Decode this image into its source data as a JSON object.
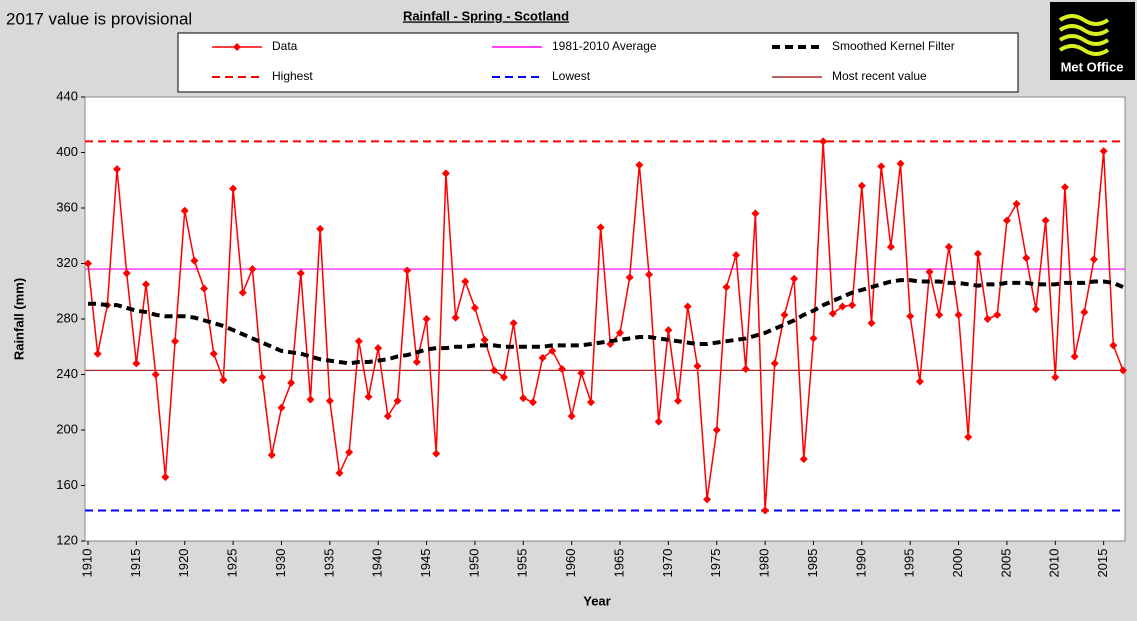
{
  "chart_data": {
    "type": "line",
    "title": "Rainfall - Spring - Scotland",
    "note": "2017 value is provisional",
    "logo": "Met Office",
    "xlabel": "Year",
    "ylabel": "Rainfall (mm)",
    "xlim": [
      1910,
      2017
    ],
    "xticks": [
      1910,
      1915,
      1920,
      1925,
      1930,
      1935,
      1940,
      1945,
      1950,
      1955,
      1960,
      1965,
      1970,
      1975,
      1980,
      1985,
      1990,
      1995,
      2000,
      2005,
      2010,
      2015
    ],
    "ylim": [
      120,
      440
    ],
    "yticks": [
      120,
      160,
      200,
      240,
      280,
      320,
      360,
      400,
      440
    ],
    "x": [
      1910,
      1911,
      1912,
      1913,
      1914,
      1915,
      1916,
      1917,
      1918,
      1919,
      1920,
      1921,
      1922,
      1923,
      1924,
      1925,
      1926,
      1927,
      1928,
      1929,
      1930,
      1931,
      1932,
      1933,
      1934,
      1935,
      1936,
      1937,
      1938,
      1939,
      1940,
      1941,
      1942,
      1943,
      1944,
      1945,
      1946,
      1947,
      1948,
      1949,
      1950,
      1951,
      1952,
      1953,
      1954,
      1955,
      1956,
      1957,
      1958,
      1959,
      1960,
      1961,
      1962,
      1963,
      1964,
      1965,
      1966,
      1967,
      1968,
      1969,
      1970,
      1971,
      1972,
      1973,
      1974,
      1975,
      1976,
      1977,
      1978,
      1979,
      1980,
      1981,
      1982,
      1983,
      1984,
      1985,
      1986,
      1987,
      1988,
      1989,
      1990,
      1991,
      1992,
      1993,
      1994,
      1995,
      1996,
      1997,
      1998,
      1999,
      2000,
      2001,
      2002,
      2003,
      2004,
      2005,
      2006,
      2007,
      2008,
      2009,
      2010,
      2011,
      2012,
      2013,
      2014,
      2015,
      2016,
      2017
    ],
    "series": [
      {
        "name": "Data",
        "color": "#ff0000",
        "style": "solid",
        "marker": "diamond",
        "values": [
          320,
          255,
          290,
          388,
          313,
          248,
          305,
          240,
          166,
          264,
          358,
          322,
          302,
          255,
          236,
          374,
          299,
          316,
          238,
          182,
          216,
          234,
          313,
          222,
          345,
          221,
          169,
          184,
          264,
          224,
          259,
          210,
          221,
          315,
          249,
          280,
          183,
          385,
          281,
          307,
          288,
          265,
          243,
          238,
          277,
          223,
          220,
          252,
          257,
          244,
          210,
          241,
          220,
          346,
          262,
          270,
          310,
          391,
          312,
          206,
          272,
          221,
          289,
          246,
          150,
          200,
          303,
          326,
          244,
          356,
          142,
          248,
          283,
          309,
          179,
          266,
          408,
          284,
          289,
          290,
          376,
          277,
          390,
          332,
          392,
          282,
          235,
          314,
          283,
          332,
          283,
          195,
          327,
          280,
          283,
          351,
          363,
          324,
          287,
          351,
          238,
          375,
          253,
          285,
          323,
          401,
          261,
          243
        ]
      },
      {
        "name": "Smoothed Kernel Filter",
        "color": "#000000",
        "style": "dashed",
        "marker": "none",
        "values": [
          291,
          291,
          290,
          290,
          288,
          286,
          285,
          283,
          282,
          282,
          282,
          281,
          279,
          277,
          275,
          272,
          269,
          266,
          263,
          260,
          257,
          256,
          255,
          253,
          251,
          250,
          249,
          248,
          249,
          249,
          250,
          251,
          253,
          254,
          256,
          258,
          259,
          259,
          260,
          260,
          261,
          261,
          261,
          260,
          260,
          260,
          260,
          260,
          261,
          261,
          261,
          261,
          262,
          263,
          264,
          265,
          266,
          267,
          267,
          266,
          265,
          264,
          263,
          262,
          262,
          263,
          264,
          265,
          266,
          268,
          270,
          273,
          276,
          279,
          283,
          286,
          290,
          293,
          296,
          299,
          301,
          303,
          305,
          307,
          308,
          308,
          307,
          307,
          307,
          306,
          306,
          305,
          304,
          305,
          305,
          306,
          306,
          306,
          305,
          305,
          305,
          306,
          306,
          306,
          307,
          307,
          306,
          303
        ]
      }
    ],
    "reference_lines": [
      {
        "name": "1981-2010 Average",
        "color": "#ff00ff",
        "style": "solid",
        "value": 316
      },
      {
        "name": "Highest",
        "color": "#ff0000",
        "style": "dashed",
        "value": 408
      },
      {
        "name": "Lowest",
        "color": "#0000ff",
        "style": "dashed",
        "value": 142
      },
      {
        "name": "Most recent value",
        "color": "#a52a2a",
        "style": "solid",
        "value": 243
      }
    ]
  }
}
